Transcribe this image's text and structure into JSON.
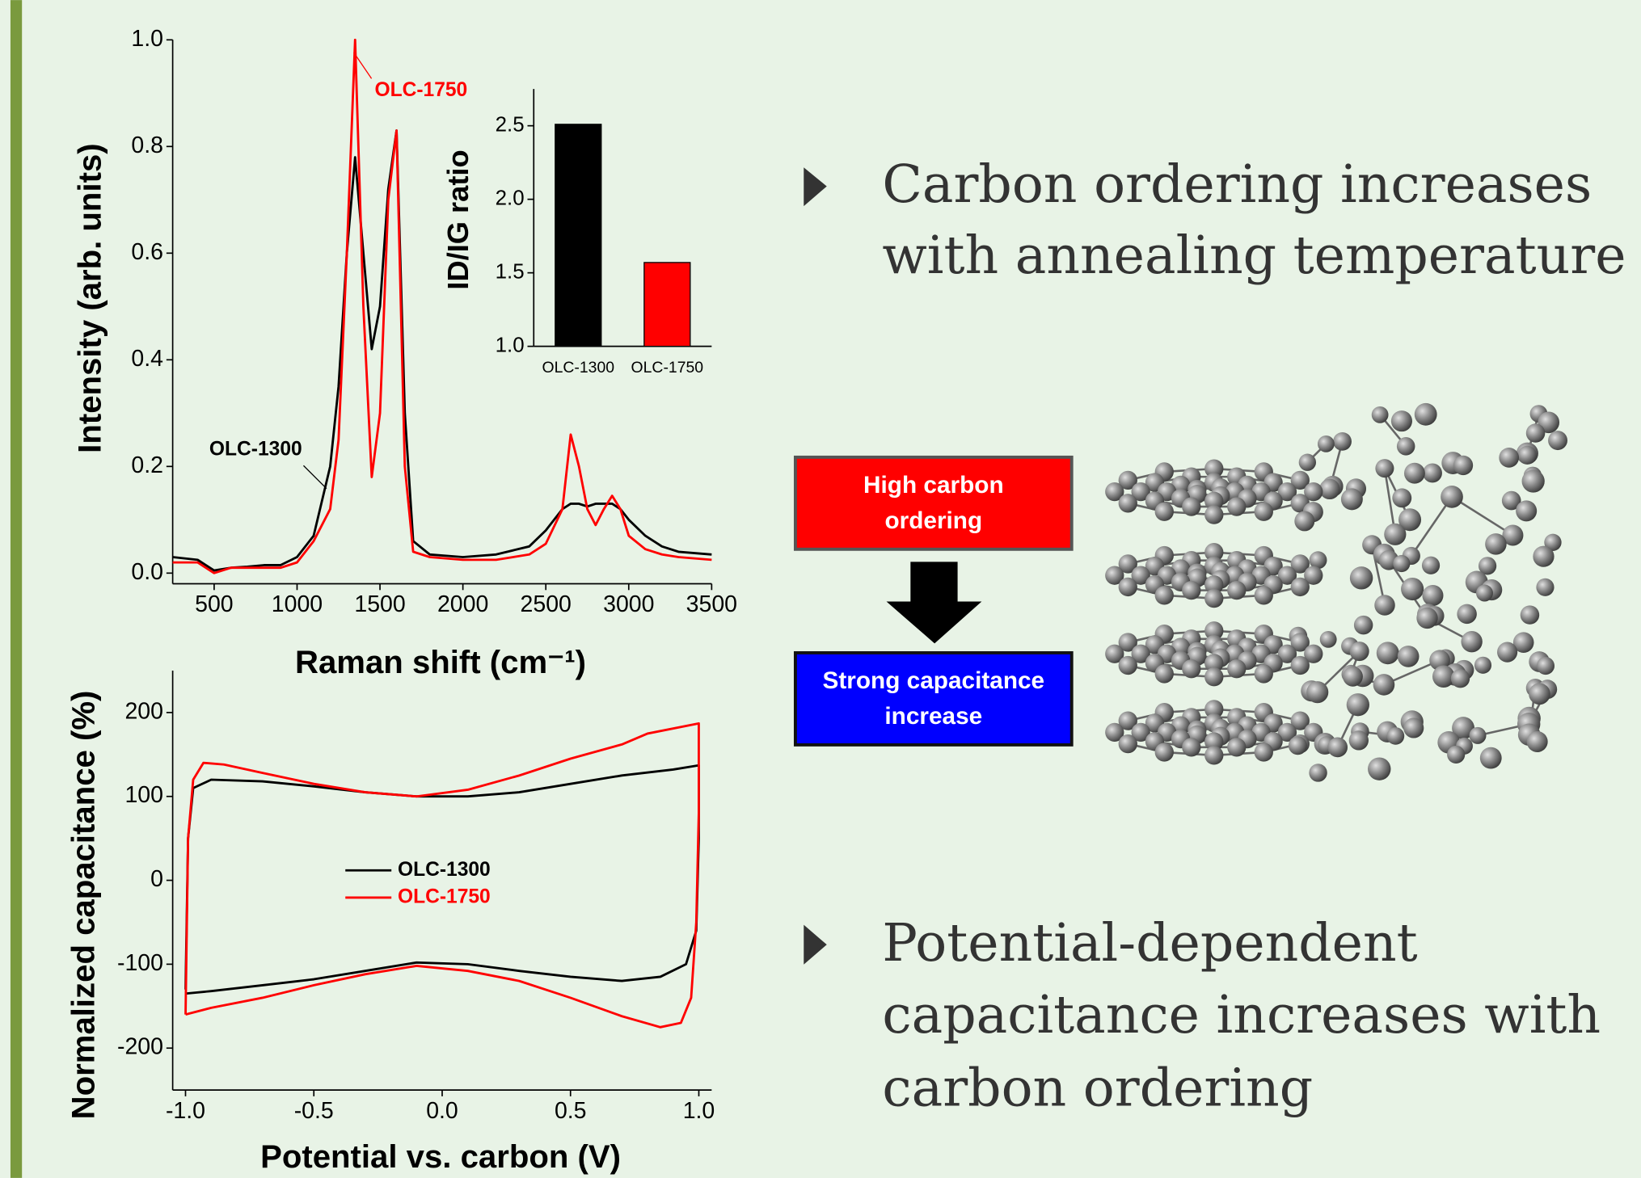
{
  "chart_data": [
    {
      "type": "line",
      "x_label": "Raman shift (cm⁻¹)",
      "y_label": "Intensity (arb. units)",
      "x": [
        250,
        400,
        500,
        600,
        700,
        800,
        900,
        1000,
        1100,
        1200,
        1250,
        1300,
        1350,
        1400,
        1450,
        1500,
        1550,
        1600,
        1650,
        1700,
        1800,
        2000,
        2200,
        2400,
        2500,
        2600,
        2650,
        2700,
        2750,
        2800,
        2850,
        2900,
        2950,
        3000,
        3100,
        3200,
        3300,
        3500
      ],
      "series": [
        {
          "name": "OLC-1300",
          "color": "#000000",
          "values": [
            0.03,
            0.025,
            0.005,
            0.01,
            0.012,
            0.015,
            0.015,
            0.03,
            0.07,
            0.2,
            0.35,
            0.6,
            0.78,
            0.6,
            0.42,
            0.5,
            0.72,
            0.83,
            0.3,
            0.06,
            0.035,
            0.03,
            0.035,
            0.05,
            0.08,
            0.12,
            0.13,
            0.13,
            0.125,
            0.13,
            0.13,
            0.13,
            0.12,
            0.1,
            0.07,
            0.05,
            0.04,
            0.035
          ]
        },
        {
          "name": "OLC-1750",
          "color": "#ff0000",
          "values": [
            0.02,
            0.02,
            0.0,
            0.01,
            0.01,
            0.01,
            0.01,
            0.02,
            0.06,
            0.12,
            0.25,
            0.6,
            1.0,
            0.5,
            0.18,
            0.3,
            0.7,
            0.83,
            0.2,
            0.04,
            0.03,
            0.025,
            0.025,
            0.035,
            0.055,
            0.12,
            0.26,
            0.2,
            0.12,
            0.09,
            0.12,
            0.145,
            0.12,
            0.07,
            0.045,
            0.035,
            0.03,
            0.025
          ]
        }
      ],
      "xlim": [
        250,
        3500
      ],
      "xticks": [
        500,
        1000,
        1500,
        2000,
        2500,
        3000,
        3500
      ],
      "ylim": [
        -0.02,
        1.0
      ],
      "yticks": [
        {
          "value": 0,
          "label": "0.0"
        },
        0.2,
        0.4,
        0.6,
        0.8,
        {
          "value": 1,
          "label": "1.0"
        }
      ]
    },
    {
      "type": "bar",
      "y_label": "ID/IG ratio",
      "categories": [
        "OLC-1300",
        "OLC-1750"
      ],
      "values": [
        2.51,
        1.57
      ],
      "colors": [
        "#000000",
        "#ff0000"
      ],
      "ylim": [
        1.0,
        2.75
      ],
      "yticks": [
        {
          "value": 1,
          "label": "1.0"
        },
        1.5,
        {
          "value": 2,
          "label": "2.0"
        },
        2.5
      ]
    },
    {
      "type": "line",
      "x_label": "Potential vs. carbon (V)",
      "y_label": "Normalized capacitance (%)",
      "legend": "center",
      "series": [
        {
          "name": "OLC-1300",
          "color": "#000000",
          "x": [
            -1.0,
            -0.99,
            -0.97,
            -0.9,
            -0.7,
            -0.5,
            -0.3,
            -0.1,
            0.1,
            0.3,
            0.5,
            0.7,
            0.9,
            1.0,
            1.0,
            0.99,
            0.95,
            0.85,
            0.7,
            0.5,
            0.3,
            0.1,
            -0.1,
            -0.3,
            -0.5,
            -0.7,
            -0.9,
            -1.0
          ],
          "values": [
            -130,
            50,
            110,
            120,
            118,
            112,
            105,
            100,
            100,
            105,
            115,
            125,
            132,
            137,
            50,
            -60,
            -100,
            -115,
            -120,
            -115,
            -108,
            -100,
            -98,
            -108,
            -118,
            -125,
            -132,
            -135
          ]
        },
        {
          "name": "OLC-1750",
          "color": "#ff0000",
          "x": [
            -1.0,
            -0.99,
            -0.97,
            -0.93,
            -0.85,
            -0.7,
            -0.5,
            -0.3,
            -0.1,
            0.1,
            0.3,
            0.5,
            0.7,
            0.8,
            1.0,
            1.0,
            0.99,
            0.97,
            0.93,
            0.85,
            0.7,
            0.5,
            0.3,
            0.1,
            -0.1,
            -0.3,
            -0.5,
            -0.7,
            -0.9,
            -1.0
          ],
          "values": [
            -160,
            50,
            120,
            140,
            138,
            128,
            115,
            105,
            100,
            108,
            125,
            145,
            162,
            175,
            187,
            80,
            -50,
            -140,
            -170,
            -175,
            -162,
            -140,
            -120,
            -108,
            -102,
            -112,
            -125,
            -140,
            -152,
            -160
          ]
        }
      ],
      "xlim": [
        -1.05,
        1.05
      ],
      "xticks": [
        {
          "value": -1,
          "label": "-1.0"
        },
        -0.5,
        {
          "value": 0,
          "label": "0.0"
        },
        0.5,
        {
          "value": 1,
          "label": "1.0"
        }
      ],
      "ylim": [
        -250,
        250
      ],
      "yticks": [
        -200,
        -100,
        0,
        100,
        200
      ]
    }
  ],
  "bullets": [
    {
      "lines": [
        "Carbon ordering increases",
        "with annealing temperature"
      ]
    },
    {
      "lines": [
        "Potential-dependent",
        "capacitance increases with",
        "carbon ordering"
      ]
    }
  ],
  "diagram": {
    "top_box": [
      "High carbon",
      "ordering"
    ],
    "bottom_box": [
      "Strong capacitance",
      "increase"
    ]
  }
}
